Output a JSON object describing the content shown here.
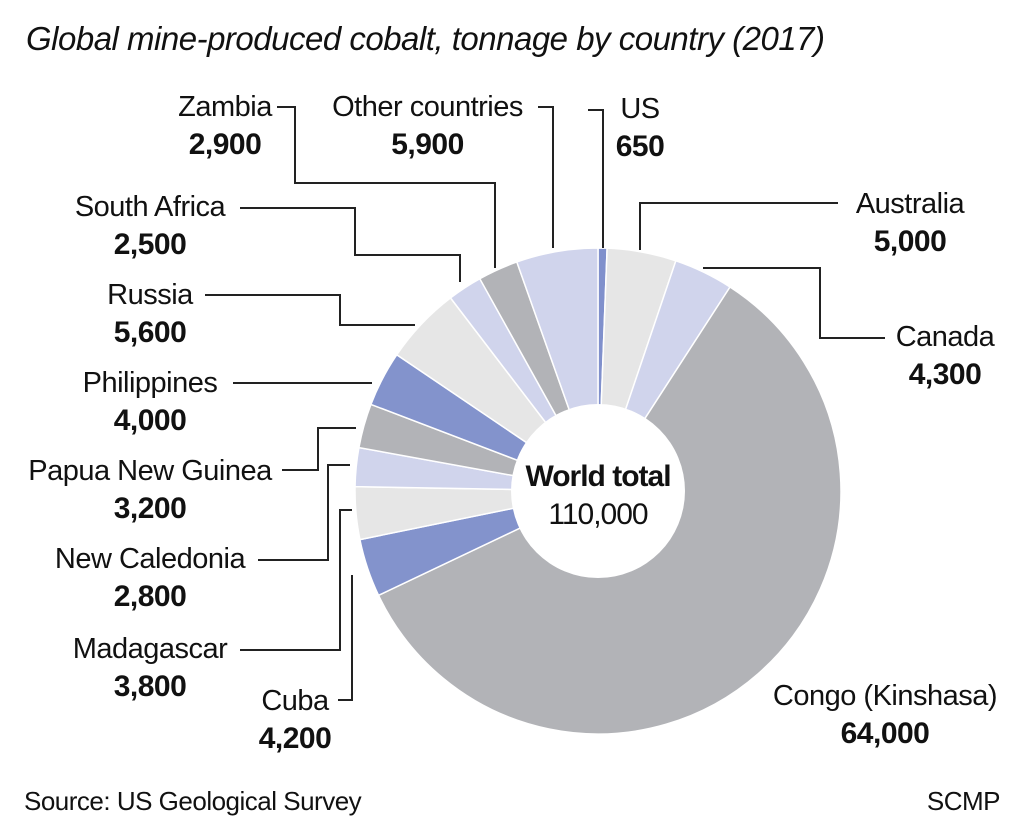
{
  "chart_data": {
    "type": "pie",
    "title": "Global mine-produced cobalt, tonnage by country (2017)",
    "center_label": "World total",
    "center_value": "110,000",
    "categories": [
      "US",
      "Australia",
      "Canada",
      "Congo (Kinshasa)",
      "Cuba",
      "Madagascar",
      "New Caledonia",
      "Papua New Guinea",
      "Philippines",
      "Russia",
      "South Africa",
      "Zambia",
      "Other countries"
    ],
    "values": [
      650,
      5000,
      4300,
      64000,
      4200,
      3800,
      2800,
      3200,
      4000,
      5600,
      2500,
      2900,
      5900
    ],
    "value_labels": [
      "650",
      "5,000",
      "4,300",
      "64,000",
      "4,200",
      "3,800",
      "2,800",
      "3,200",
      "4,000",
      "5,600",
      "2,500",
      "2,900",
      "5,900"
    ],
    "colors": [
      "#8090cc",
      "#e6e6e6",
      "#d0d4ec",
      "#b2b3b7",
      "#8393cc",
      "#e6e6e6",
      "#d0d4ec",
      "#b2b3b7",
      "#8393cc",
      "#e6e6e6",
      "#d0d4ec",
      "#b2b3b7",
      "#d0d4ec"
    ],
    "donut": true,
    "source": "Source: US Geological Survey",
    "credit": "SCMP"
  }
}
